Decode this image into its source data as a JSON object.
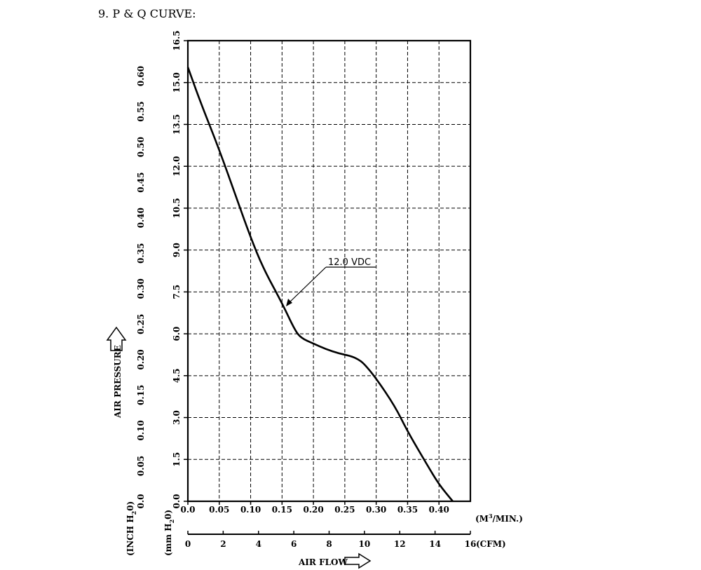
{
  "heading": "9. P & Q CURVE:",
  "chart_data": {
    "type": "line",
    "x_primary": {
      "unit_label": "(M",
      "unit_sup": "3",
      "unit_tail": "/MIN.)",
      "ticks": [
        "0.0",
        "0.05",
        "0.10",
        "0.15",
        "0.20",
        "0.25",
        "0.30",
        "0.35",
        "0.40"
      ],
      "range": [
        0,
        0.45
      ]
    },
    "x_secondary": {
      "unit_label": "(CFM)",
      "ticks": [
        "0",
        "2",
        "4",
        "6",
        "8",
        "10",
        "12",
        "14",
        "16"
      ],
      "range": [
        0,
        16
      ]
    },
    "y_mm": {
      "unit_label": "(mm H",
      "unit_sub": "2",
      "unit_tail": "0)",
      "ticks": [
        "0.0",
        "1.5",
        "3.0",
        "4.5",
        "6.0",
        "7.5",
        "9.0",
        "10.5",
        "12.0",
        "13.5",
        "15.0",
        "16.5"
      ],
      "range": [
        0,
        16.5
      ]
    },
    "y_inch": {
      "unit_label": "(INCH H",
      "unit_sub": "2",
      "unit_tail": "0)",
      "ticks": [
        "0.0",
        "0.05",
        "0.10",
        "0.15",
        "0.20",
        "0.25",
        "0.30",
        "0.35",
        "0.40",
        "0.45",
        "0.50",
        "0.55",
        "0.60"
      ],
      "range": [
        0,
        0.65
      ]
    },
    "ylabel": "AIR PRESSURE",
    "xlabel": "AIR FLOW",
    "grid": true,
    "series": [
      {
        "name": "12.0 VDC",
        "x_unit": "M3/MIN",
        "y_unit": "mm H2O",
        "points": [
          [
            0.0,
            15.55
          ],
          [
            0.02,
            14.3
          ],
          [
            0.05,
            12.6
          ],
          [
            0.08,
            10.7
          ],
          [
            0.1,
            9.45
          ],
          [
            0.12,
            8.35
          ],
          [
            0.15,
            7.1
          ],
          [
            0.17,
            6.15
          ],
          [
            0.18,
            5.85
          ],
          [
            0.2,
            5.65
          ],
          [
            0.22,
            5.45
          ],
          [
            0.24,
            5.3
          ],
          [
            0.26,
            5.2
          ],
          [
            0.27,
            5.1
          ],
          [
            0.28,
            4.95
          ],
          [
            0.3,
            4.4
          ],
          [
            0.33,
            3.4
          ],
          [
            0.35,
            2.5
          ],
          [
            0.38,
            1.35
          ],
          [
            0.4,
            0.6
          ],
          [
            0.422,
            0.0
          ]
        ]
      }
    ],
    "annotation": "12.0 VDC"
  }
}
